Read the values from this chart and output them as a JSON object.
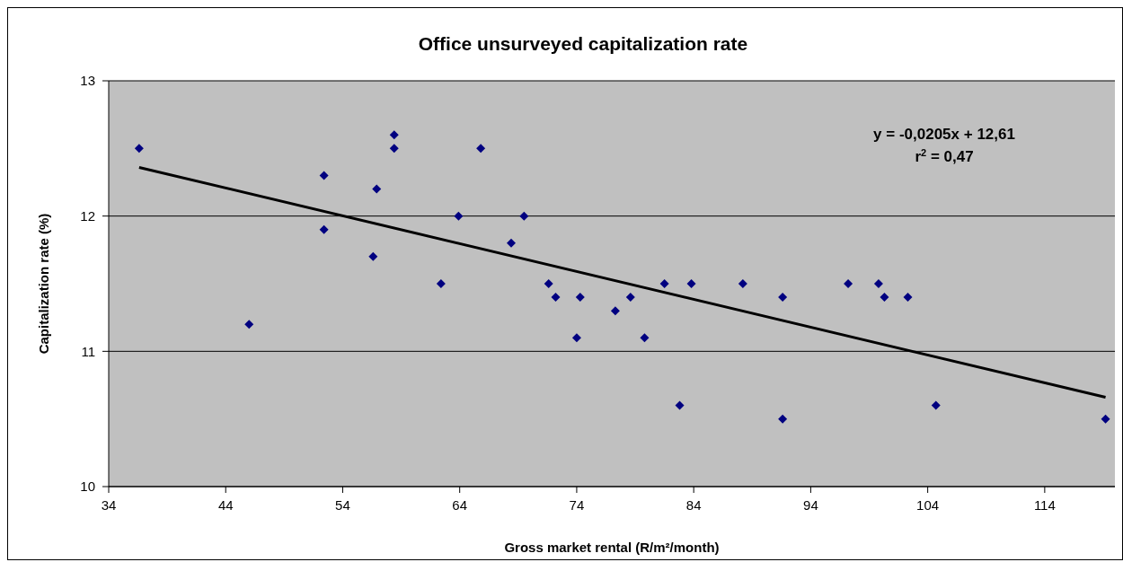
{
  "chart_data": {
    "type": "scatter",
    "title": "Office unsurveyed capitalization rate",
    "xlabel": "Gross market rental (R/m²/month)",
    "ylabel": "Capitalization rate (%)",
    "annotations": [
      "y = -0,0205x + 12,61",
      "r$^{2}$ = 0,47"
    ],
    "xlim": [
      34,
      120
    ],
    "xticks": [
      34,
      44,
      54,
      64,
      74,
      84,
      94,
      104,
      114
    ],
    "ylim": [
      10,
      13
    ],
    "yticks": [
      10,
      11,
      12,
      13
    ],
    "grid": "y",
    "series": [
      {
        "marker": "diamond",
        "color": "#000080",
        "x": [
          36.6,
          46.0,
          52.4,
          52.4,
          56.6,
          56.9,
          58.4,
          58.4,
          62.4,
          63.9,
          65.8,
          68.4,
          69.5,
          71.6,
          72.2,
          74.3,
          74.0,
          77.3,
          78.6,
          79.8,
          81.5,
          82.8,
          83.8,
          88.2,
          91.6,
          91.6,
          97.2,
          99.8,
          100.3,
          102.3,
          104.7,
          119.2
        ],
        "values": [
          12.5,
          11.2,
          12.3,
          11.9,
          11.7,
          12.2,
          12.6,
          12.5,
          11.5,
          12.0,
          12.5,
          11.8,
          12.0,
          11.5,
          11.4,
          11.4,
          11.1,
          11.3,
          11.4,
          11.1,
          11.5,
          10.6,
          11.5,
          11.5,
          11.4,
          10.5,
          11.5,
          11.5,
          11.4,
          11.4,
          10.6,
          10.5
        ]
      },
      {
        "type": "line",
        "color": "#000000",
        "x": [
          36.6,
          119.2
        ],
        "values": [
          12.36,
          10.66
        ]
      }
    ]
  }
}
